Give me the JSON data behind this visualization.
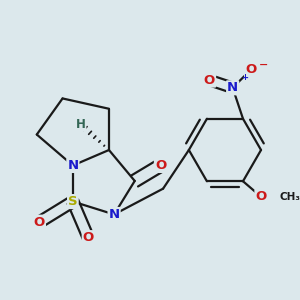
{
  "bg_color": "#dce8ec",
  "bond_color": "#1a1a1a",
  "bond_width": 1.6,
  "atom_colors": {
    "C": "#1a1a1a",
    "N": "#1a1acc",
    "O": "#cc1a1a",
    "S": "#aaaa00",
    "H": "#336655"
  },
  "fs": 9.5,
  "fs_small": 7.0
}
